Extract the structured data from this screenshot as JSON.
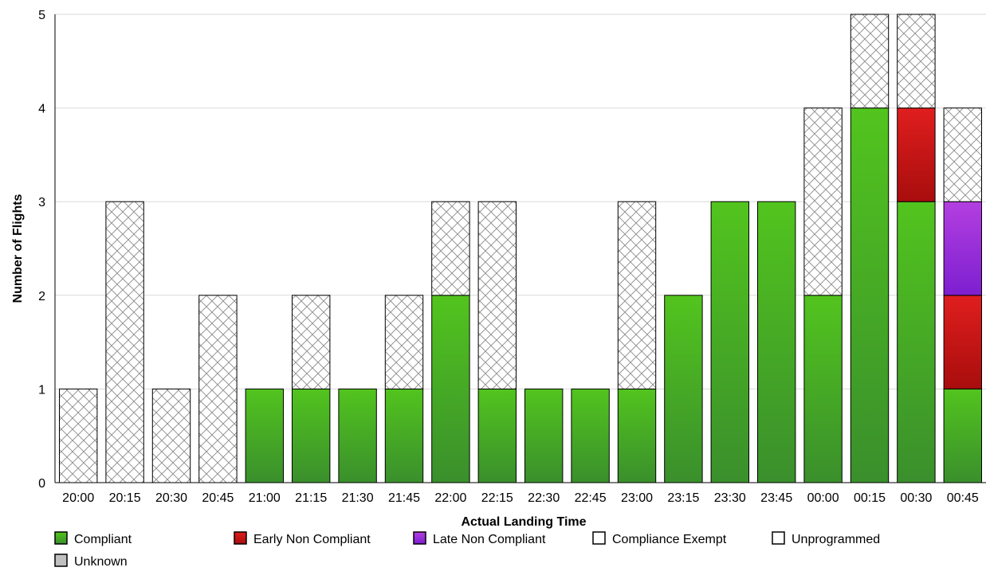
{
  "chart_data": {
    "type": "bar",
    "stacked": true,
    "xlabel": "Actual Landing Time",
    "ylabel": "Number of Flights",
    "ylim": [
      0,
      5
    ],
    "yticks": [
      "0",
      "1",
      "2",
      "3",
      "4",
      "5"
    ],
    "grid": true,
    "legend_position": "bottom",
    "categories": [
      "20:00",
      "20:15",
      "20:30",
      "20:45",
      "21:00",
      "21:15",
      "21:30",
      "21:45",
      "22:00",
      "22:15",
      "22:30",
      "22:45",
      "23:00",
      "23:15",
      "23:30",
      "23:45",
      "00:00",
      "00:15",
      "00:30",
      "00:45"
    ],
    "series": [
      {
        "name": "Compliant",
        "color": "#3fa62a",
        "values": [
          0,
          0,
          0,
          0,
          1,
          1,
          1,
          1,
          2,
          1,
          1,
          1,
          1,
          2,
          3,
          3,
          2,
          4,
          3,
          1
        ]
      },
      {
        "name": "Early Non Compliant",
        "color": "#c41414",
        "values": [
          0,
          0,
          0,
          0,
          0,
          0,
          0,
          0,
          0,
          0,
          0,
          0,
          0,
          0,
          0,
          0,
          0,
          0,
          1,
          1
        ]
      },
      {
        "name": "Late Non Compliant",
        "color": "#9a2fd6",
        "values": [
          0,
          0,
          0,
          0,
          0,
          0,
          0,
          0,
          0,
          0,
          0,
          0,
          0,
          0,
          0,
          0,
          0,
          0,
          0,
          1
        ]
      },
      {
        "name": "Compliance Exempt",
        "color": "#ffffff",
        "values": [
          1,
          3,
          1,
          2,
          0,
          1,
          0,
          1,
          1,
          2,
          0,
          0,
          2,
          0,
          0,
          0,
          2,
          1,
          1,
          1
        ]
      },
      {
        "name": "Unprogrammed",
        "color": "#ffffff",
        "values": [
          0,
          0,
          0,
          0,
          0,
          0,
          0,
          0,
          0,
          0,
          0,
          0,
          0,
          0,
          0,
          0,
          0,
          0,
          0,
          0
        ]
      },
      {
        "name": "Unknown",
        "color": "#c0c0c0",
        "values": [
          0,
          0,
          0,
          0,
          0,
          0,
          0,
          0,
          0,
          0,
          0,
          0,
          0,
          0,
          0,
          0,
          0,
          0,
          0,
          0
        ]
      }
    ]
  }
}
